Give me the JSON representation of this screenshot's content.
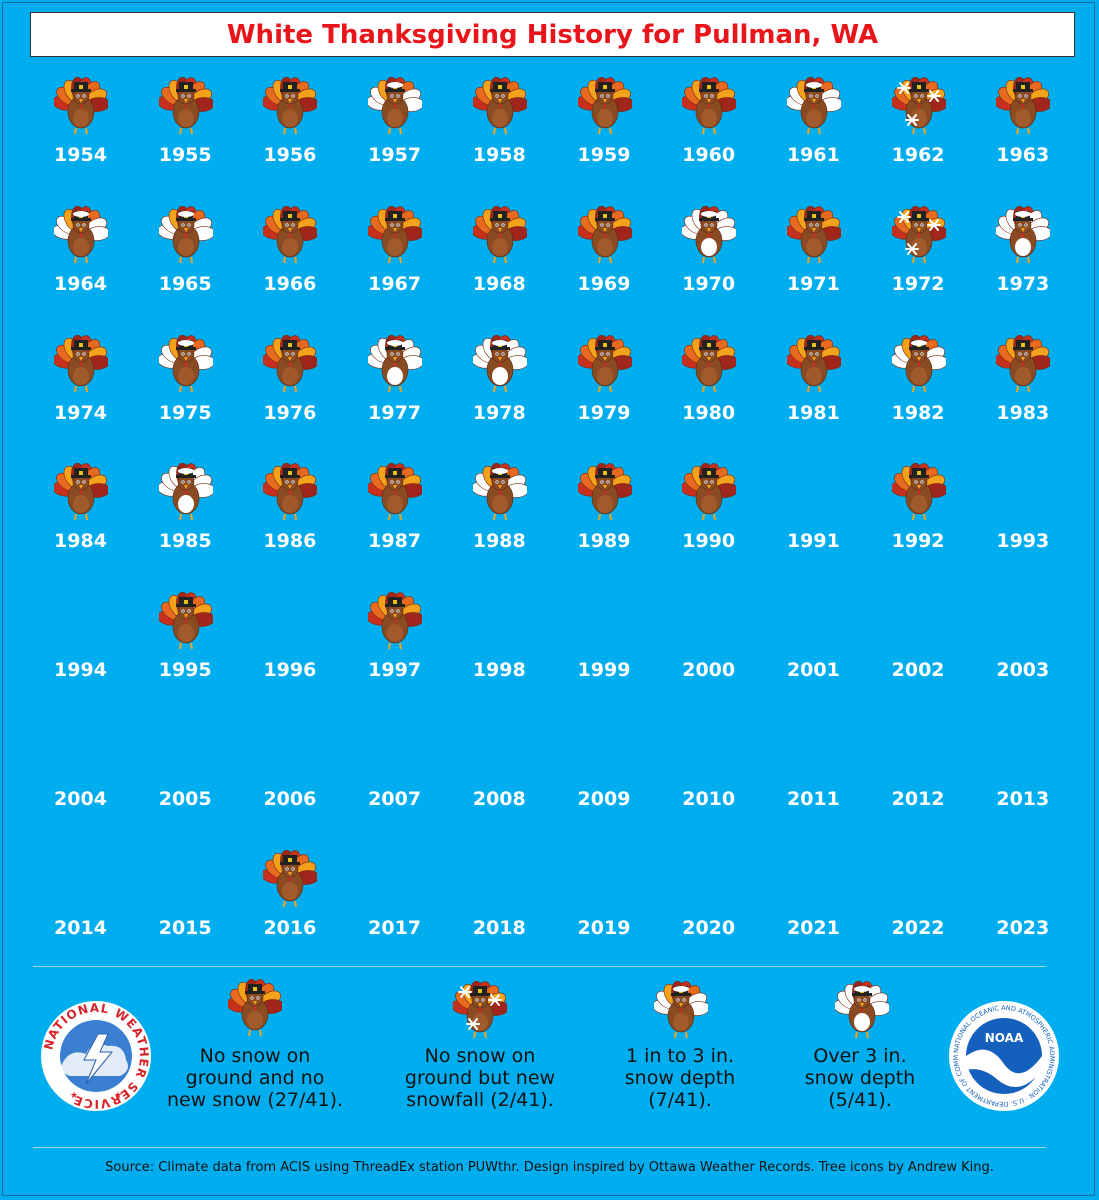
{
  "title": "White Thanksgiving History for Pullman, WA",
  "categories": {
    "none": "No snow on ground and no new snow (27/41).",
    "newsnow": "No snow on ground but new snowfall (2/41).",
    "depth1to3": "1 in to 3 in. snow depth (7/41).",
    "over3": "Over 3 in. snow depth (5/41)."
  },
  "legend": [
    {
      "category": "none",
      "lines": [
        "No snow on",
        "ground and no",
        "new snow (27/41)."
      ]
    },
    {
      "category": "newsnow",
      "lines": [
        "No snow on",
        "ground but new",
        "snowfall (2/41)."
      ]
    },
    {
      "category": "depth1to3",
      "lines": [
        "1 in to 3 in.",
        "snow depth",
        "(7/41)."
      ]
    },
    {
      "category": "over3",
      "lines": [
        "Over 3 in.",
        "snow depth",
        "(5/41)."
      ]
    }
  ],
  "years": [
    {
      "year": "1954",
      "category": "none"
    },
    {
      "year": "1955",
      "category": "none"
    },
    {
      "year": "1956",
      "category": "none"
    },
    {
      "year": "1957",
      "category": "depth1to3"
    },
    {
      "year": "1958",
      "category": "none"
    },
    {
      "year": "1959",
      "category": "none"
    },
    {
      "year": "1960",
      "category": "none"
    },
    {
      "year": "1961",
      "category": "depth1to3"
    },
    {
      "year": "1962",
      "category": "newsnow"
    },
    {
      "year": "1963",
      "category": "none"
    },
    {
      "year": "1964",
      "category": "depth1to3"
    },
    {
      "year": "1965",
      "category": "depth1to3"
    },
    {
      "year": "1966",
      "category": "none"
    },
    {
      "year": "1967",
      "category": "none"
    },
    {
      "year": "1968",
      "category": "none"
    },
    {
      "year": "1969",
      "category": "none"
    },
    {
      "year": "1970",
      "category": "over3"
    },
    {
      "year": "1971",
      "category": "none"
    },
    {
      "year": "1972",
      "category": "newsnow"
    },
    {
      "year": "1973",
      "category": "over3"
    },
    {
      "year": "1974",
      "category": "none"
    },
    {
      "year": "1975",
      "category": "depth1to3"
    },
    {
      "year": "1976",
      "category": "none"
    },
    {
      "year": "1977",
      "category": "over3"
    },
    {
      "year": "1978",
      "category": "over3"
    },
    {
      "year": "1979",
      "category": "none"
    },
    {
      "year": "1980",
      "category": "none"
    },
    {
      "year": "1981",
      "category": "none"
    },
    {
      "year": "1982",
      "category": "depth1to3"
    },
    {
      "year": "1983",
      "category": "none"
    },
    {
      "year": "1984",
      "category": "none"
    },
    {
      "year": "1985",
      "category": "over3"
    },
    {
      "year": "1986",
      "category": "none"
    },
    {
      "year": "1987",
      "category": "none"
    },
    {
      "year": "1988",
      "category": "depth1to3"
    },
    {
      "year": "1989",
      "category": "none"
    },
    {
      "year": "1990",
      "category": "none"
    },
    {
      "year": "1991",
      "category": null
    },
    {
      "year": "1992",
      "category": "none"
    },
    {
      "year": "1993",
      "category": null
    },
    {
      "year": "1994",
      "category": null
    },
    {
      "year": "1995",
      "category": "none"
    },
    {
      "year": "1996",
      "category": null
    },
    {
      "year": "1997",
      "category": "none"
    },
    {
      "year": "1998",
      "category": null
    },
    {
      "year": "1999",
      "category": null
    },
    {
      "year": "2000",
      "category": null
    },
    {
      "year": "2001",
      "category": null
    },
    {
      "year": "2002",
      "category": null
    },
    {
      "year": "2003",
      "category": null
    },
    {
      "year": "2004",
      "category": null
    },
    {
      "year": "2005",
      "category": null
    },
    {
      "year": "2006",
      "category": null
    },
    {
      "year": "2007",
      "category": null
    },
    {
      "year": "2008",
      "category": null
    },
    {
      "year": "2009",
      "category": null
    },
    {
      "year": "2010",
      "category": null
    },
    {
      "year": "2011",
      "category": null
    },
    {
      "year": "2012",
      "category": null
    },
    {
      "year": "2013",
      "category": null
    },
    {
      "year": "2014",
      "category": null
    },
    {
      "year": "2015",
      "category": null
    },
    {
      "year": "2016",
      "category": "none"
    },
    {
      "year": "2017",
      "category": null
    },
    {
      "year": "2018",
      "category": null
    },
    {
      "year": "2019",
      "category": null
    },
    {
      "year": "2020",
      "category": null
    },
    {
      "year": "2021",
      "category": null
    },
    {
      "year": "2022",
      "category": null
    },
    {
      "year": "2023",
      "category": null
    }
  ],
  "logos": {
    "nws_text": "NATIONAL WEATHER SERVICE",
    "noaa_center": "NOAA",
    "noaa_ring": "NATIONAL OCEANIC AND ATMOSPHERIC ADMINISTRATION · U.S. DEPARTMENT OF COMMERCE"
  },
  "source": "Source: Climate data from ACIS using ThreadEx station PUWthr. Design inspired by Ottawa Weather Records. Tree icons by Andrew King.",
  "colors": {
    "background": "#00AEEF",
    "title": "#e8151b",
    "turkey_body": "#8a4a22",
    "turkey_feathers": [
      "#c8301e",
      "#e86a1e",
      "#f4a21c",
      "#a0251a"
    ],
    "snow": "#ffffff"
  }
}
